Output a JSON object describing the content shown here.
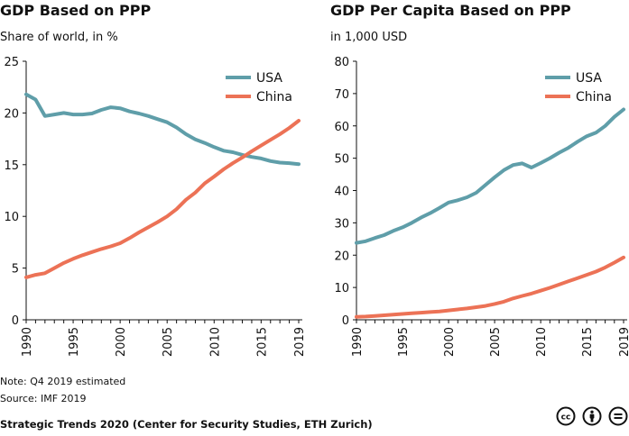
{
  "colors": {
    "usa": "#5f9ea9",
    "china": "#ec7256",
    "axis": "#111111",
    "icon": "#111111"
  },
  "chart_data": [
    {
      "type": "line",
      "title": "GDP Based on PPP",
      "subtitle": "Share of world, in %",
      "xlabel": "",
      "ylabel": "",
      "xlim": [
        1990,
        2019
      ],
      "ylim": [
        0,
        25
      ],
      "yticks": [
        0,
        5,
        10,
        15,
        20,
        25
      ],
      "xticks": [
        1990,
        1995,
        2000,
        2005,
        2010,
        2015,
        2019
      ],
      "grid": false,
      "legend": "top-right",
      "x": [
        1990,
        1991,
        1992,
        1993,
        1994,
        1995,
        1996,
        1997,
        1998,
        1999,
        2000,
        2001,
        2002,
        2003,
        2004,
        2005,
        2006,
        2007,
        2008,
        2009,
        2010,
        2011,
        2012,
        2013,
        2014,
        2015,
        2016,
        2017,
        2018,
        2019
      ],
      "series": [
        {
          "name": "USA",
          "color_key": "usa",
          "values": [
            21.8,
            21.3,
            19.7,
            19.85,
            20.0,
            19.85,
            19.85,
            19.95,
            20.3,
            20.55,
            20.45,
            20.15,
            19.95,
            19.7,
            19.4,
            19.1,
            18.6,
            17.95,
            17.45,
            17.1,
            16.7,
            16.35,
            16.2,
            15.95,
            15.75,
            15.6,
            15.35,
            15.2,
            15.15,
            15.05
          ]
        },
        {
          "name": "China",
          "color_key": "china",
          "values": [
            4.1,
            4.35,
            4.5,
            5.0,
            5.5,
            5.9,
            6.25,
            6.55,
            6.85,
            7.1,
            7.4,
            7.9,
            8.45,
            8.95,
            9.45,
            10.0,
            10.7,
            11.6,
            12.3,
            13.2,
            13.85,
            14.55,
            15.15,
            15.7,
            16.3,
            16.85,
            17.4,
            17.95,
            18.55,
            19.25
          ]
        }
      ]
    },
    {
      "type": "line",
      "title": "GDP Per Capita Based on PPP",
      "subtitle": "in 1,000 USD",
      "xlabel": "",
      "ylabel": "",
      "xlim": [
        1990,
        2019
      ],
      "ylim": [
        0,
        80
      ],
      "yticks": [
        0,
        10,
        20,
        30,
        40,
        50,
        60,
        70,
        80
      ],
      "xticks": [
        1990,
        1995,
        2000,
        2005,
        2010,
        2015,
        2019
      ],
      "grid": false,
      "legend": "top-right",
      "x": [
        1990,
        1991,
        1992,
        1993,
        1994,
        1995,
        1996,
        1997,
        1998,
        1999,
        2000,
        2001,
        2002,
        2003,
        2004,
        2005,
        2006,
        2007,
        2008,
        2009,
        2010,
        2011,
        2012,
        2013,
        2014,
        2015,
        2016,
        2017,
        2018,
        2019
      ],
      "series": [
        {
          "name": "USA",
          "color_key": "usa",
          "values": [
            23.8,
            24.3,
            25.3,
            26.2,
            27.5,
            28.6,
            30.0,
            31.6,
            33.0,
            34.6,
            36.3,
            37.0,
            37.9,
            39.3,
            41.7,
            44.1,
            46.3,
            47.9,
            48.4,
            47.1,
            48.5,
            50.0,
            51.7,
            53.2,
            55.1,
            56.8,
            57.9,
            60.0,
            62.8,
            65.1
          ]
        },
        {
          "name": "China",
          "color_key": "china",
          "values": [
            0.9,
            1.0,
            1.2,
            1.4,
            1.6,
            1.8,
            2.0,
            2.2,
            2.4,
            2.6,
            2.9,
            3.2,
            3.5,
            3.9,
            4.3,
            4.9,
            5.6,
            6.6,
            7.4,
            8.1,
            9.0,
            9.9,
            10.9,
            11.9,
            12.9,
            13.9,
            14.9,
            16.2,
            17.7,
            19.3
          ]
        }
      ]
    }
  ],
  "footer": {
    "note": "Note: Q4 2019 estimated",
    "source": "Source: IMF 2019",
    "credit": "Strategic Trends 2020 (Center for Security Studies, ETH Zurich)"
  },
  "license": {
    "cc_text": "cc",
    "icons": [
      "cc-icon",
      "by-attribution-icon",
      "no-derivatives-icon"
    ]
  }
}
